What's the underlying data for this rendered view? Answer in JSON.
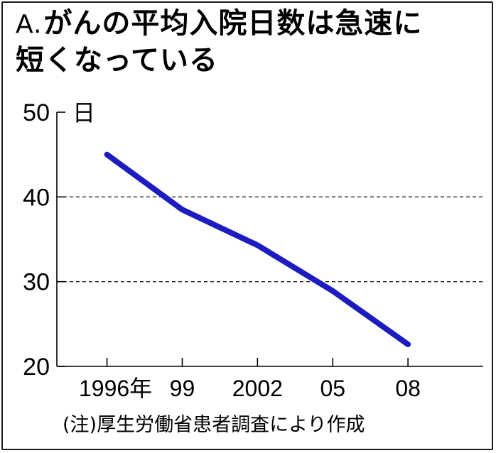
{
  "title": {
    "prefix": "A.",
    "line1": "がんの平均入院日数は急速に",
    "line2": "短くなっている"
  },
  "note": "(注)厚生労働省患者調査により作成",
  "chart_data": {
    "type": "line",
    "title": "がんの平均入院日数は急速に短くなっている",
    "ylabel": "日",
    "xlabel": "",
    "ylim": [
      20,
      50
    ],
    "yticks": [
      20,
      30,
      40,
      50
    ],
    "y_tick_labels": [
      "20",
      "30",
      "40",
      "50"
    ],
    "x_tick_labels": [
      "1996年",
      "99",
      "2002",
      "05",
      "08"
    ],
    "x_ticks": [
      1996,
      1999,
      2002,
      2005,
      2008
    ],
    "xlim": [
      1994,
      2011
    ],
    "grid": "dashed-horizontal",
    "series": [
      {
        "color": "#1c1cc0",
        "x": [
          1996,
          1999,
          2002,
          2005,
          2008
        ],
        "values": [
          45.0,
          38.5,
          34.3,
          28.9,
          22.6
        ]
      }
    ]
  }
}
